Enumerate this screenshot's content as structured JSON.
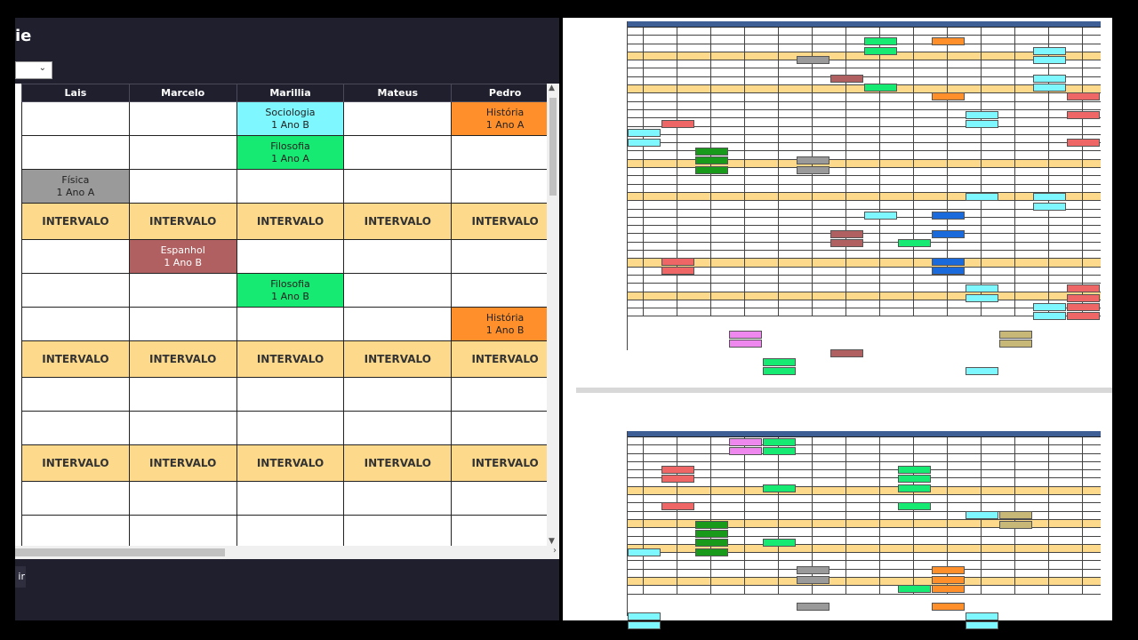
{
  "window": {
    "title_fragment": "ie",
    "bottom_button_fragment": "ir"
  },
  "table": {
    "headers": [
      "Lais",
      "Marcelo",
      "Marillia",
      "Mateus",
      "Pedro"
    ],
    "rows": [
      {
        "type": "class",
        "cells": [
          {
            "subject": "",
            "class": "",
            "color": ""
          },
          {
            "subject": "",
            "class": "",
            "color": ""
          },
          {
            "subject": "Sociologia",
            "class": "1 Ano B",
            "color": "soc"
          },
          {
            "subject": "",
            "class": "",
            "color": ""
          },
          {
            "subject": "História",
            "class": "1 Ano A",
            "color": "his"
          }
        ]
      },
      {
        "type": "class",
        "cells": [
          {
            "subject": "",
            "class": "",
            "color": ""
          },
          {
            "subject": "",
            "class": "",
            "color": ""
          },
          {
            "subject": "Filosofia",
            "class": "1 Ano A",
            "color": "fil"
          },
          {
            "subject": "",
            "class": "",
            "color": ""
          },
          {
            "subject": "",
            "class": "",
            "color": ""
          }
        ]
      },
      {
        "type": "class",
        "cells": [
          {
            "subject": "Física",
            "class": "1 Ano A",
            "color": "fis"
          },
          {
            "subject": "",
            "class": "",
            "color": ""
          },
          {
            "subject": "",
            "class": "",
            "color": ""
          },
          {
            "subject": "",
            "class": "",
            "color": ""
          },
          {
            "subject": "",
            "class": "",
            "color": ""
          }
        ]
      },
      {
        "type": "interval",
        "label": "INTERVALO"
      },
      {
        "type": "class",
        "cells": [
          {
            "subject": "",
            "class": "",
            "color": ""
          },
          {
            "subject": "Espanhol",
            "class": "1 Ano B",
            "color": "esp"
          },
          {
            "subject": "",
            "class": "",
            "color": ""
          },
          {
            "subject": "",
            "class": "",
            "color": ""
          },
          {
            "subject": "",
            "class": "",
            "color": ""
          }
        ]
      },
      {
        "type": "class",
        "cells": [
          {
            "subject": "",
            "class": "",
            "color": ""
          },
          {
            "subject": "",
            "class": "",
            "color": ""
          },
          {
            "subject": "Filosofia",
            "class": "1 Ano B",
            "color": "fil"
          },
          {
            "subject": "",
            "class": "",
            "color": ""
          },
          {
            "subject": "",
            "class": "",
            "color": ""
          }
        ]
      },
      {
        "type": "class",
        "cells": [
          {
            "subject": "",
            "class": "",
            "color": ""
          },
          {
            "subject": "",
            "class": "",
            "color": ""
          },
          {
            "subject": "",
            "class": "",
            "color": ""
          },
          {
            "subject": "",
            "class": "",
            "color": ""
          },
          {
            "subject": "História",
            "class": "1 Ano B",
            "color": "his"
          }
        ]
      },
      {
        "type": "interval",
        "label": "INTERVALO"
      },
      {
        "type": "class",
        "cells": [
          {
            "subject": "",
            "class": "",
            "color": ""
          },
          {
            "subject": "",
            "class": "",
            "color": ""
          },
          {
            "subject": "",
            "class": "",
            "color": ""
          },
          {
            "subject": "",
            "class": "",
            "color": ""
          },
          {
            "subject": "",
            "class": "",
            "color": ""
          }
        ]
      },
      {
        "type": "class",
        "cells": [
          {
            "subject": "",
            "class": "",
            "color": ""
          },
          {
            "subject": "",
            "class": "",
            "color": ""
          },
          {
            "subject": "",
            "class": "",
            "color": ""
          },
          {
            "subject": "",
            "class": "",
            "color": ""
          },
          {
            "subject": "",
            "class": "",
            "color": ""
          }
        ]
      },
      {
        "type": "interval",
        "label": "INTERVALO"
      },
      {
        "type": "class",
        "cells": [
          {
            "subject": "",
            "class": "",
            "color": ""
          },
          {
            "subject": "",
            "class": "",
            "color": ""
          },
          {
            "subject": "",
            "class": "",
            "color": ""
          },
          {
            "subject": "",
            "class": "",
            "color": ""
          },
          {
            "subject": "",
            "class": "",
            "color": ""
          }
        ]
      },
      {
        "type": "class",
        "cells": [
          {
            "subject": "",
            "class": "",
            "color": ""
          },
          {
            "subject": "",
            "class": "",
            "color": ""
          },
          {
            "subject": "",
            "class": "",
            "color": ""
          },
          {
            "subject": "",
            "class": "",
            "color": ""
          },
          {
            "subject": "",
            "class": "",
            "color": ""
          }
        ]
      }
    ]
  },
  "colors": {
    "soc": "#7ff7ff",
    "fil": "#17ea73",
    "fis": "#9a9a9a",
    "esp": "#b06060",
    "his": "#ff8f2a",
    "interval": "#fcd98b",
    "header": "#1f1f2e",
    "sheet_header": "#3d5f96",
    "darkgreen": "#1a9a1a",
    "blue": "#1a6adc",
    "pink": "#ee88ee",
    "khaki": "#c8b878",
    "salmon": "#ee6666"
  },
  "preview": {
    "top_blocks": [
      {
        "r": 1,
        "c": 8,
        "k": "fil"
      },
      {
        "r": 1,
        "c": 10,
        "k": "his"
      },
      {
        "r": 2,
        "c": 8,
        "k": "fil"
      },
      {
        "r": 2,
        "c": 13,
        "k": "soc"
      },
      {
        "r": 3,
        "c": 6,
        "k": "fis"
      },
      {
        "r": 3,
        "c": 13,
        "k": "soc"
      },
      {
        "r": 5,
        "c": 7,
        "k": "esp"
      },
      {
        "r": 5,
        "c": 13,
        "k": "soc"
      },
      {
        "r": 6,
        "c": 8,
        "k": "fil"
      },
      {
        "r": 6,
        "c": 13,
        "k": "soc"
      },
      {
        "r": 7,
        "c": 10,
        "k": "his"
      },
      {
        "r": 7,
        "c": 14,
        "k": "salmon"
      },
      {
        "r": 9,
        "c": 11,
        "k": "soc"
      },
      {
        "r": 9,
        "c": 14,
        "k": "salmon"
      },
      {
        "r": 10,
        "c": 11,
        "k": "soc"
      },
      {
        "r": 10,
        "c": 2,
        "k": "salmon"
      },
      {
        "r": 11,
        "c": 1,
        "k": "soc"
      },
      {
        "r": 12,
        "c": 1,
        "k": "soc"
      },
      {
        "r": 12,
        "c": 14,
        "k": "salmon"
      },
      {
        "r": 13,
        "c": 3,
        "k": "darkgreen"
      },
      {
        "r": 14,
        "c": 3,
        "k": "darkgreen"
      },
      {
        "r": 15,
        "c": 3,
        "k": "darkgreen"
      },
      {
        "r": 14,
        "c": 6,
        "k": "fis"
      },
      {
        "r": 15,
        "c": 6,
        "k": "fis"
      },
      {
        "r": 18,
        "c": 11,
        "k": "soc"
      },
      {
        "r": 18,
        "c": 13,
        "k": "soc"
      },
      {
        "r": 19,
        "c": 13,
        "k": "soc"
      },
      {
        "r": 20,
        "c": 8,
        "k": "soc"
      },
      {
        "r": 20,
        "c": 10,
        "k": "blue"
      },
      {
        "r": 22,
        "c": 10,
        "k": "blue"
      },
      {
        "r": 22,
        "c": 7,
        "k": "esp"
      },
      {
        "r": 23,
        "c": 7,
        "k": "esp"
      },
      {
        "r": 23,
        "c": 9,
        "k": "fil"
      },
      {
        "r": 25,
        "c": 2,
        "k": "salmon"
      },
      {
        "r": 26,
        "c": 2,
        "k": "salmon"
      },
      {
        "r": 25,
        "c": 10,
        "k": "blue"
      },
      {
        "r": 26,
        "c": 10,
        "k": "blue"
      },
      {
        "r": 28,
        "c": 11,
        "k": "soc"
      },
      {
        "r": 28,
        "c": 14,
        "k": "salmon"
      },
      {
        "r": 29,
        "c": 11,
        "k": "soc"
      },
      {
        "r": 29,
        "c": 14,
        "k": "salmon"
      },
      {
        "r": 30,
        "c": 13,
        "k": "soc"
      },
      {
        "r": 30,
        "c": 14,
        "k": "salmon"
      },
      {
        "r": 31,
        "c": 13,
        "k": "soc"
      },
      {
        "r": 31,
        "c": 14,
        "k": "salmon"
      },
      {
        "r": 33,
        "c": 4,
        "k": "pink"
      },
      {
        "r": 33,
        "c": 12,
        "k": "khaki"
      },
      {
        "r": 34,
        "c": 4,
        "k": "pink"
      },
      {
        "r": 34,
        "c": 12,
        "k": "khaki"
      },
      {
        "r": 35,
        "c": 7,
        "k": "esp"
      },
      {
        "r": 36,
        "c": 5,
        "k": "fil"
      },
      {
        "r": 37,
        "c": 5,
        "k": "fil"
      },
      {
        "r": 37,
        "c": 11,
        "k": "soc"
      }
    ],
    "bottom_blocks": [
      {
        "r": 0,
        "c": 4,
        "k": "pink"
      },
      {
        "r": 0,
        "c": 5,
        "k": "fil"
      },
      {
        "r": 1,
        "c": 4,
        "k": "pink"
      },
      {
        "r": 1,
        "c": 5,
        "k": "fil"
      },
      {
        "r": 3,
        "c": 2,
        "k": "salmon"
      },
      {
        "r": 3,
        "c": 9,
        "k": "fil"
      },
      {
        "r": 4,
        "c": 2,
        "k": "salmon"
      },
      {
        "r": 4,
        "c": 9,
        "k": "fil"
      },
      {
        "r": 5,
        "c": 5,
        "k": "fil"
      },
      {
        "r": 5,
        "c": 9,
        "k": "fil"
      },
      {
        "r": 7,
        "c": 2,
        "k": "salmon"
      },
      {
        "r": 7,
        "c": 9,
        "k": "fil"
      },
      {
        "r": 8,
        "c": 11,
        "k": "soc"
      },
      {
        "r": 8,
        "c": 12,
        "k": "khaki"
      },
      {
        "r": 9,
        "c": 3,
        "k": "darkgreen"
      },
      {
        "r": 9,
        "c": 12,
        "k": "khaki"
      },
      {
        "r": 10,
        "c": 3,
        "k": "darkgreen"
      },
      {
        "r": 11,
        "c": 3,
        "k": "darkgreen"
      },
      {
        "r": 11,
        "c": 5,
        "k": "fil"
      },
      {
        "r": 12,
        "c": 1,
        "k": "soc"
      },
      {
        "r": 12,
        "c": 3,
        "k": "darkgreen"
      },
      {
        "r": 14,
        "c": 6,
        "k": "fis"
      },
      {
        "r": 14,
        "c": 10,
        "k": "his"
      },
      {
        "r": 15,
        "c": 6,
        "k": "fis"
      },
      {
        "r": 15,
        "c": 10,
        "k": "his"
      },
      {
        "r": 16,
        "c": 10,
        "k": "his"
      },
      {
        "r": 16,
        "c": 9,
        "k": "fil"
      },
      {
        "r": 18,
        "c": 6,
        "k": "fis"
      },
      {
        "r": 18,
        "c": 10,
        "k": "his"
      },
      {
        "r": 19,
        "c": 1,
        "k": "soc"
      },
      {
        "r": 19,
        "c": 11,
        "k": "soc"
      },
      {
        "r": 20,
        "c": 1,
        "k": "soc"
      },
      {
        "r": 20,
        "c": 11,
        "k": "soc"
      }
    ]
  }
}
